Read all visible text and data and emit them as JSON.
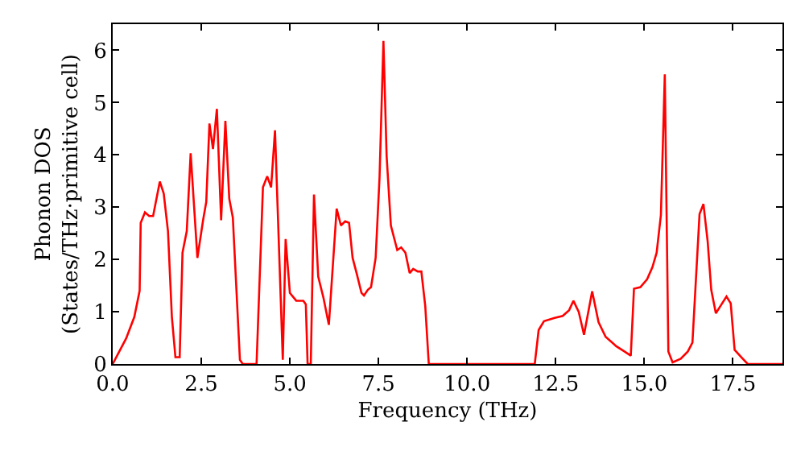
{
  "chart_data": {
    "type": "line",
    "xlabel": "Frequency (THz)",
    "ylabel": "Phonon DOS\n(States/THz·primitive cell)",
    "xlim": [
      0,
      18.9
    ],
    "ylim": [
      0,
      6.5
    ],
    "xticks": [
      {
        "value": 0,
        "label": "0.0"
      },
      {
        "value": 2.5,
        "label": "2.5"
      },
      {
        "value": 5,
        "label": "5.0"
      },
      {
        "value": 7.5,
        "label": "7.5"
      },
      {
        "value": 10,
        "label": "10.0"
      },
      {
        "value": 12.5,
        "label": "12.5"
      },
      {
        "value": 15,
        "label": "15.0"
      },
      {
        "value": 17.5,
        "label": "17.5"
      }
    ],
    "yticks": [
      0,
      1,
      2,
      3,
      4,
      5,
      6
    ],
    "marker": "none",
    "line_style": "solid",
    "series": [
      {
        "color": "#ff0000",
        "x": [
          0,
          0.38,
          0.61,
          0.76,
          0.79,
          0.91,
          1.03,
          1.14,
          1.33,
          1.44,
          1.56,
          1.67,
          1.77,
          1.89,
          1.97,
          2.09,
          2.2,
          2.39,
          2.55,
          2.64,
          2.73,
          2.83,
          2.94,
          3.06,
          3.18,
          3.29,
          3.39,
          3.59,
          3.67,
          4.06,
          4.24,
          4.36,
          4.47,
          4.58,
          4.8,
          4.88,
          5.0,
          5.18,
          5.38,
          5.45,
          5.5,
          5.59,
          5.68,
          5.8,
          5.95,
          6.1,
          6.32,
          6.44,
          6.56,
          6.67,
          6.77,
          6.89,
          7.02,
          7.09,
          7.2,
          7.29,
          7.42,
          7.53,
          7.64,
          7.73,
          7.85,
          8.03,
          8.14,
          8.26,
          8.38,
          8.48,
          8.61,
          8.71,
          8.82,
          8.92,
          11.91,
          12.02,
          12.17,
          12.47,
          12.7,
          12.88,
          13.0,
          13.15,
          13.3,
          13.53,
          13.71,
          13.91,
          14.21,
          14.44,
          14.62,
          14.71,
          14.89,
          15.08,
          15.23,
          15.35,
          15.47,
          15.58,
          15.68,
          15.8,
          16.03,
          16.23,
          16.36,
          16.56,
          16.67,
          16.79,
          16.89,
          17.02,
          17.17,
          17.32,
          17.44,
          17.55,
          17.74,
          17.92,
          18.9
        ],
        "values": [
          0,
          0.49,
          0.9,
          1.4,
          2.7,
          2.9,
          2.83,
          2.83,
          3.49,
          3.26,
          2.54,
          0.9,
          0.13,
          0.13,
          2.13,
          2.54,
          4.03,
          2.03,
          2.75,
          3.1,
          4.6,
          4.11,
          4.88,
          2.75,
          4.65,
          3.16,
          2.8,
          0.08,
          0,
          0,
          3.38,
          3.59,
          3.38,
          4.47,
          0.08,
          2.39,
          1.36,
          1.21,
          1.21,
          1.14,
          0,
          0,
          3.24,
          1.67,
          1.26,
          0.75,
          2.97,
          2.65,
          2.73,
          2.7,
          2.03,
          1.72,
          1.36,
          1.31,
          1.42,
          1.47,
          2.03,
          3.57,
          6.18,
          3.98,
          2.65,
          2.18,
          2.23,
          2.13,
          1.74,
          1.82,
          1.77,
          1.77,
          1.11,
          0,
          0,
          0.65,
          0.82,
          0.88,
          0.92,
          1.03,
          1.21,
          1.0,
          0.56,
          1.39,
          0.8,
          0.52,
          0.34,
          0.24,
          0.16,
          1.44,
          1.47,
          1.62,
          1.85,
          2.13,
          2.85,
          5.54,
          0.24,
          0.03,
          0.1,
          0.24,
          0.41,
          2.87,
          3.06,
          2.34,
          1.42,
          0.97,
          1.13,
          1.29,
          1.16,
          0.27,
          0.13,
          0,
          0
        ]
      }
    ]
  }
}
